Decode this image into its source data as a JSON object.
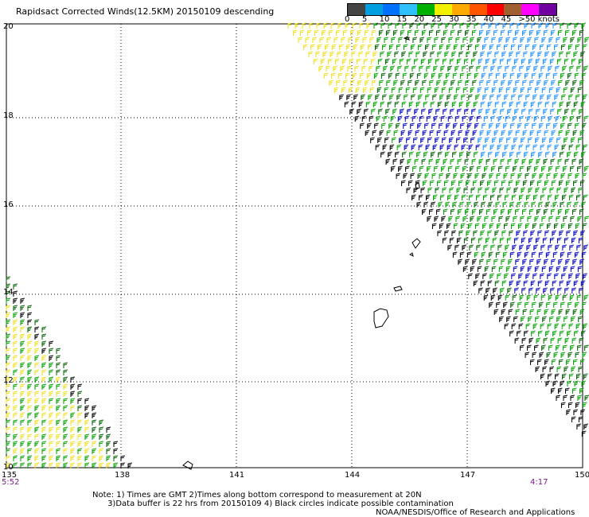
{
  "title": "Rapidsact Corrected Winds(12.5KM) 20150109 descending",
  "legend": {
    "colors": [
      "#444444",
      "#00a0e0",
      "#0070ff",
      "#2fc0ff",
      "#00b000",
      "#f0f000",
      "#ffaa00",
      "#ff5500",
      "#ff0000",
      "#a06030",
      "#ff00ff",
      "#7000a0"
    ],
    "labels": [
      "0",
      "5",
      "10",
      "15",
      "20",
      "25",
      "30",
      "35",
      "40",
      "45",
      ">50 knots"
    ]
  },
  "axes": {
    "lat_labels": [
      "20",
      "18",
      "16",
      "14",
      "12",
      "10"
    ],
    "lon_labels": [
      "135",
      "138",
      "141",
      "144",
      "147",
      "150"
    ]
  },
  "times": {
    "left": "5:52",
    "right": "4:17"
  },
  "note_lines": [
    "Note: 1) Times are GMT 2)Times along bottom correspond to measurement at 20N",
    "      3)Data buffer is 22 hrs from 20150109 4) Black circles indicate possible contamination"
  ],
  "credit": "NOAA/NESDIS/Office of Research and Applications",
  "map": {
    "swath_colors": {
      "yellow": "#f0e020",
      "green": "#00a000",
      "darkgreen": "#006000",
      "blue": "#0000c0",
      "lightblue": "#1e90ff",
      "black": "#000000"
    },
    "coastline_color": "#000000"
  }
}
